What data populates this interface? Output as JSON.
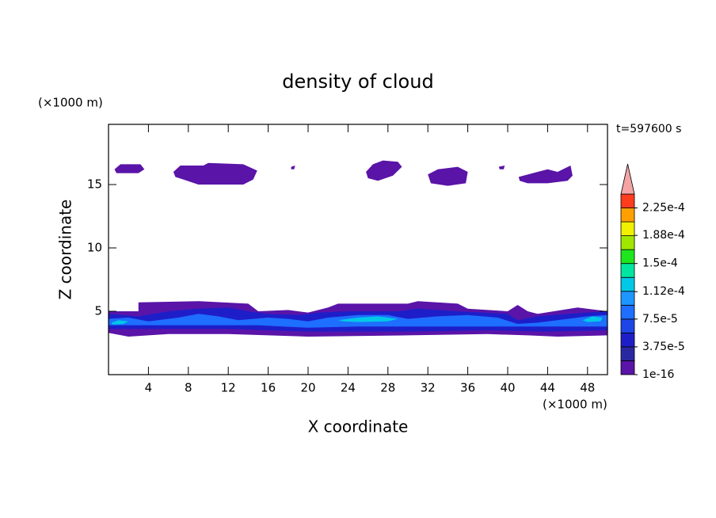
{
  "chart_data": {
    "type": "contour",
    "title": "density of cloud",
    "x_label": "X coordinate",
    "y_label": "Z coordinate",
    "x_unit": "(×1000 m)",
    "y_unit": "(×1000 m)",
    "time_label": "t=597600 s",
    "xlim": [
      0,
      50
    ],
    "ylim": [
      0,
      19.75
    ],
    "xticks": [
      4,
      8,
      12,
      16,
      20,
      24,
      28,
      32,
      36,
      40,
      44,
      48
    ],
    "yticks": [
      5,
      10,
      15
    ],
    "colorbar": {
      "lim": [
        1e-16,
        0.00024375
      ],
      "colors": [
        "#5a14a8",
        "#2a28a0",
        "#1e1ec8",
        "#1e46e6",
        "#1e6eff",
        "#1e96ff",
        "#00c8e6",
        "#00e6a0",
        "#1ee61e",
        "#a0e600",
        "#f0f000",
        "#ffa000",
        "#ff3c1e"
      ],
      "extend_color": "#f4a4a4",
      "ticks": [
        1e-16,
        {
          "value": 3.75e-05,
          "label": "3.75e-5"
        },
        {
          "value": 7.5e-05,
          "label": "7.5e-5"
        },
        {
          "value": 0.000112,
          "label": "1.12e-4"
        },
        {
          "value": 0.00015,
          "label": "1.5e-4"
        },
        {
          "value": 0.000188,
          "label": "1.88e-4"
        },
        {
          "value": 0.000225,
          "label": "2.25e-4"
        }
      ]
    },
    "regions": [
      {
        "value": 1e-16,
        "x": [
          0.6,
          1.2,
          3.2,
          3.6,
          3.0,
          0.8
        ],
        "z": [
          16.2,
          16.6,
          16.6,
          16.2,
          15.9,
          15.9
        ]
      },
      {
        "value": 1e-16,
        "x": [
          6.5,
          7.2,
          9.5,
          10,
          13.5,
          14.9,
          14.5,
          13.5,
          9,
          7.5,
          6.7
        ],
        "z": [
          16.0,
          16.5,
          16.5,
          16.7,
          16.6,
          16.1,
          15.4,
          15.0,
          15.0,
          15.4,
          15.6
        ]
      },
      {
        "value": 1e-16,
        "x": [
          18.3,
          18.7,
          18.6,
          18.3
        ],
        "z": [
          16.4,
          16.5,
          16.2,
          16.2
        ]
      },
      {
        "value": 1e-16,
        "x": [
          25.8,
          26.5,
          27.5,
          29,
          29.4,
          28.5,
          27,
          26
        ],
        "z": [
          16.0,
          16.6,
          16.9,
          16.8,
          16.4,
          15.7,
          15.3,
          15.5
        ]
      },
      {
        "value": 1e-16,
        "x": [
          32,
          33,
          35,
          36,
          35.8,
          34,
          32.3
        ],
        "z": [
          15.8,
          16.2,
          16.4,
          16.0,
          15.1,
          14.9,
          15.1
        ]
      },
      {
        "value": 1e-16,
        "x": [
          39.1,
          39.7,
          39.6,
          39.2
        ],
        "z": [
          16.4,
          16.5,
          16.2,
          16.2
        ]
      },
      {
        "value": 1e-16,
        "x": [
          41.1,
          43,
          44,
          45,
          46.3,
          46.5,
          46,
          44,
          42,
          41.2
        ],
        "z": [
          15.6,
          16.0,
          16.2,
          16.0,
          16.5,
          15.7,
          15.3,
          15.1,
          15.1,
          15.3
        ]
      },
      {
        "value": 1e-16,
        "x": [
          0,
          3,
          3,
          9,
          14,
          15,
          18,
          20,
          22,
          23,
          30,
          31,
          35,
          36,
          40,
          41,
          42,
          43,
          47,
          50,
          50,
          45,
          42,
          38,
          30,
          20,
          12,
          6,
          2,
          0
        ],
        "z": [
          5.0,
          5.0,
          5.7,
          5.8,
          5.6,
          5.0,
          5.1,
          4.9,
          5.3,
          5.6,
          5.6,
          5.8,
          5.6,
          5.2,
          5.0,
          5.5,
          5.0,
          4.8,
          5.3,
          5.0,
          3.1,
          3.0,
          3.1,
          3.2,
          3.1,
          3.0,
          3.2,
          3.2,
          3.0,
          3.3
        ]
      },
      {
        "value": 4e-05,
        "x": [
          0,
          3,
          6,
          9,
          12,
          14,
          16,
          19,
          21,
          24,
          29,
          31,
          35,
          40,
          41,
          43,
          46,
          50,
          50,
          44,
          38,
          30,
          20,
          12,
          6,
          0
        ],
        "z": [
          4.8,
          4.6,
          5.0,
          5.2,
          5.3,
          5.0,
          4.8,
          4.7,
          4.9,
          5.0,
          5.0,
          5.2,
          5.0,
          4.8,
          4.3,
          4.6,
          4.8,
          5.0,
          3.5,
          3.4,
          3.5,
          3.4,
          3.4,
          3.6,
          3.6,
          3.6
        ]
      },
      {
        "value": 7.8e-05,
        "x": [
          0,
          2,
          4,
          7,
          9,
          11,
          13,
          16,
          18,
          20,
          22,
          25,
          28,
          30,
          33,
          36,
          39,
          41,
          43,
          46,
          48,
          50,
          50,
          45,
          41,
          35,
          30,
          25,
          20,
          15,
          10,
          5,
          0
        ],
        "z": [
          4.4,
          4.5,
          4.2,
          4.5,
          4.8,
          4.6,
          4.3,
          4.5,
          4.4,
          4.2,
          4.5,
          4.7,
          4.7,
          4.4,
          4.6,
          4.7,
          4.5,
          4.0,
          4.1,
          4.4,
          4.6,
          4.7,
          3.8,
          3.8,
          3.8,
          3.8,
          3.8,
          3.8,
          3.7,
          3.9,
          3.9,
          3.9,
          3.9
        ]
      },
      {
        "value": 0.000115,
        "x": [
          0.3,
          1,
          2,
          1.5,
          0.4
        ],
        "z": [
          4.1,
          4.3,
          4.2,
          4.0,
          3.95
        ]
      },
      {
        "value": 0.000115,
        "x": [
          23,
          25,
          27,
          29,
          28,
          25,
          23.5
        ],
        "z": [
          4.3,
          4.5,
          4.6,
          4.4,
          4.2,
          4.15,
          4.2
        ]
      },
      {
        "value": 0.000115,
        "x": [
          47.5,
          48.5,
          49.5,
          49.3,
          48
        ],
        "z": [
          4.3,
          4.6,
          4.5,
          4.2,
          4.15
        ]
      }
    ]
  }
}
